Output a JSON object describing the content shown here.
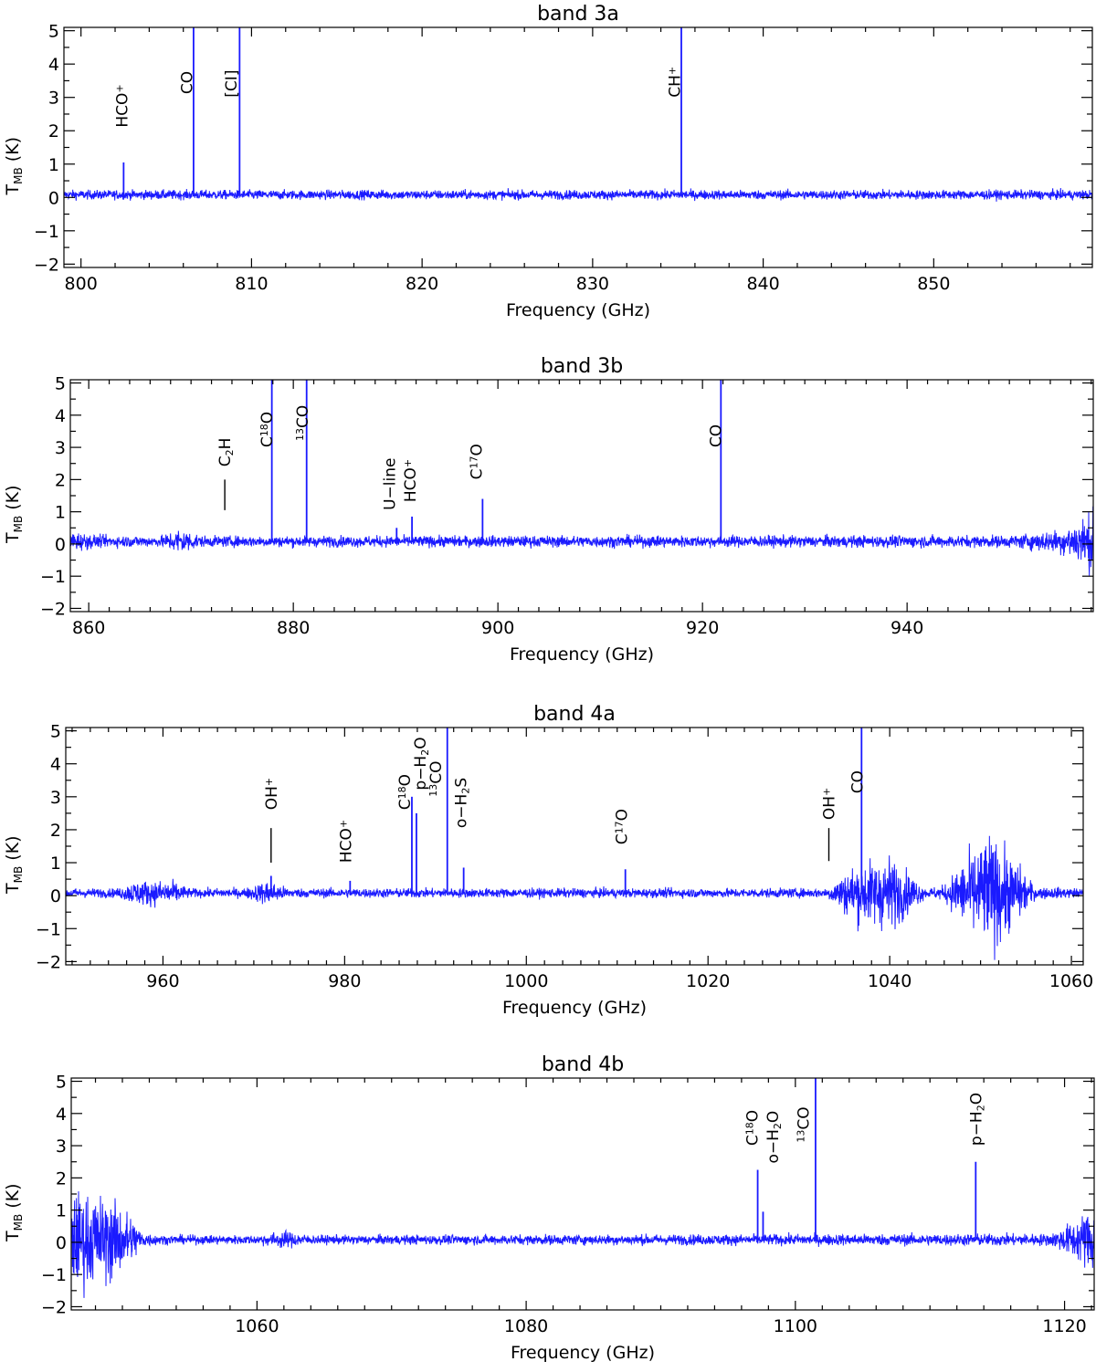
{
  "chart_data": [
    {
      "type": "line",
      "title": "band 3a",
      "xlabel": "Frequency (GHz)",
      "ylabel": "T_MB (K)",
      "ylabel_main": "T",
      "ylabel_sub": "MB",
      "ylabel_tail": " (K)",
      "xlim": [
        799,
        859.3
      ],
      "ylim": [
        -2.1,
        5.1
      ],
      "xticks": [
        800,
        810,
        820,
        830,
        840,
        850
      ],
      "yticks": [
        -2,
        -1,
        0,
        1,
        2,
        3,
        4,
        5
      ],
      "color": "#1a1aff",
      "noise": [
        [
          799,
          0.15
        ],
        [
          859.3,
          0.15
        ]
      ],
      "peaks": [
        {
          "x": 802.5,
          "y": 1.05
        },
        {
          "x": 806.6,
          "y": 5.1
        },
        {
          "x": 809.3,
          "y": 5.1
        },
        {
          "x": 835.2,
          "y": 5.1
        }
      ],
      "labels": [
        {
          "x": 802.4,
          "y": 2.1,
          "parts": [
            [
              "HCO",
              ""
            ],
            [
              "+",
              "sup"
            ]
          ]
        },
        {
          "x": 806.2,
          "y": 3.1,
          "parts": [
            [
              "CO",
              ""
            ]
          ]
        },
        {
          "x": 808.8,
          "y": 3.0,
          "parts": [
            [
              "[CI]",
              ""
            ]
          ]
        },
        {
          "x": 834.8,
          "y": 3.0,
          "parts": [
            [
              "CH",
              ""
            ],
            [
              "+",
              "sup"
            ]
          ]
        }
      ],
      "markers": []
    },
    {
      "type": "line",
      "title": "band 3b",
      "xlabel": "Frequency (GHz)",
      "ylabel": "T_MB (K)",
      "ylabel_main": "T",
      "ylabel_sub": "MB",
      "ylabel_tail": " (K)",
      "xlim": [
        858.2,
        958.2
      ],
      "ylim": [
        -2.1,
        5.1
      ],
      "xticks": [
        860,
        880,
        900,
        920,
        940
      ],
      "yticks": [
        -2,
        -1,
        0,
        1,
        2,
        3,
        4,
        5
      ],
      "color": "#1a1aff",
      "noise": [
        [
          858.2,
          0.35
        ],
        [
          861,
          0.2
        ],
        [
          867,
          0.18
        ],
        [
          869,
          0.45
        ],
        [
          871,
          0.18
        ],
        [
          950,
          0.2
        ],
        [
          955,
          0.4
        ],
        [
          958.2,
          1.0
        ]
      ],
      "peaks": [
        {
          "x": 877.9,
          "y": 5.1
        },
        {
          "x": 881.3,
          "y": 5.1
        },
        {
          "x": 890.1,
          "y": 0.5
        },
        {
          "x": 891.6,
          "y": 0.85
        },
        {
          "x": 898.5,
          "y": 1.4
        },
        {
          "x": 921.8,
          "y": 5.1
        }
      ],
      "labels": [
        {
          "x": 873.3,
          "y": 2.4,
          "parts": [
            [
              "C",
              ""
            ],
            [
              "2",
              "sub"
            ],
            [
              "H",
              ""
            ]
          ]
        },
        {
          "x": 877.4,
          "y": 3.0,
          "parts": [
            [
              "C",
              ""
            ],
            [
              "18",
              "sup"
            ],
            [
              "O",
              ""
            ]
          ]
        },
        {
          "x": 880.9,
          "y": 3.2,
          "parts": [
            [
              "13",
              "sup"
            ],
            [
              "CO",
              ""
            ]
          ]
        },
        {
          "x": 889.4,
          "y": 1.05,
          "parts": [
            [
              "U−line",
              ""
            ]
          ]
        },
        {
          "x": 891.4,
          "y": 1.3,
          "parts": [
            [
              "HCO",
              ""
            ],
            [
              "+",
              "sup"
            ]
          ]
        },
        {
          "x": 897.9,
          "y": 2.0,
          "parts": [
            [
              "C",
              ""
            ],
            [
              "17",
              "sup"
            ],
            [
              "O",
              ""
            ]
          ]
        },
        {
          "x": 921.3,
          "y": 3.0,
          "parts": [
            [
              "CO",
              ""
            ]
          ]
        }
      ],
      "markers": [
        {
          "x": 873.3,
          "y1": 1.05,
          "y2": 2.0
        }
      ]
    },
    {
      "type": "line",
      "title": "band 4a",
      "xlabel": "Frequency (GHz)",
      "ylabel": "T_MB (K)",
      "ylabel_main": "T",
      "ylabel_sub": "MB",
      "ylabel_tail": " (K)",
      "xlim": [
        949.3,
        1061.3
      ],
      "ylim": [
        -2.1,
        5.1
      ],
      "xticks": [
        960,
        980,
        1000,
        1020,
        1040,
        1060
      ],
      "yticks": [
        -2,
        -1,
        0,
        1,
        2,
        3,
        4,
        5
      ],
      "color": "#1a1aff",
      "noise": [
        [
          949.3,
          0.15
        ],
        [
          955,
          0.15
        ],
        [
          957,
          0.4
        ],
        [
          961,
          0.4
        ],
        [
          963,
          0.15
        ],
        [
          969,
          0.15
        ],
        [
          971.5,
          0.4
        ],
        [
          974,
          0.15
        ],
        [
          1033,
          0.15
        ],
        [
          1036,
          0.9
        ],
        [
          1040,
          1.2
        ],
        [
          1044,
          0.15
        ],
        [
          1046,
          0.25
        ],
        [
          1048,
          1.0
        ],
        [
          1051,
          1.9
        ],
        [
          1054,
          1.0
        ],
        [
          1056,
          0.2
        ],
        [
          1061.3,
          0.15
        ]
      ],
      "peaks": [
        {
          "x": 971.9,
          "y": 0.6
        },
        {
          "x": 980.6,
          "y": 0.45
        },
        {
          "x": 987.4,
          "y": 3.0
        },
        {
          "x": 987.9,
          "y": 2.5
        },
        {
          "x": 991.3,
          "y": 5.1
        },
        {
          "x": 993.1,
          "y": 0.85
        },
        {
          "x": 1010.9,
          "y": 0.8
        },
        {
          "x": 1036.9,
          "y": 5.1
        }
      ],
      "labels": [
        {
          "x": 971.9,
          "y": 2.6,
          "parts": [
            [
              "OH",
              ""
            ],
            [
              "+",
              "sup"
            ]
          ]
        },
        {
          "x": 980.1,
          "y": 1.0,
          "parts": [
            [
              "HCO",
              ""
            ],
            [
              "+",
              "sup"
            ]
          ]
        },
        {
          "x": 986.6,
          "y": 2.6,
          "parts": [
            [
              "C",
              ""
            ],
            [
              "18",
              "sup"
            ],
            [
              "O",
              ""
            ]
          ]
        },
        {
          "x": 988.3,
          "y": 3.2,
          "parts": [
            [
              "p−H",
              ""
            ],
            [
              "2",
              "sub"
            ],
            [
              "O",
              ""
            ]
          ]
        },
        {
          "x": 990.0,
          "y": 3.0,
          "parts": [
            [
              "13",
              "sup"
            ],
            [
              "CO",
              ""
            ]
          ]
        },
        {
          "x": 992.8,
          "y": 2.05,
          "parts": [
            [
              "o−H",
              ""
            ],
            [
              "2",
              "sub"
            ],
            [
              "S",
              ""
            ]
          ]
        },
        {
          "x": 1010.5,
          "y": 1.55,
          "parts": [
            [
              "C",
              ""
            ],
            [
              "17",
              "sup"
            ],
            [
              "O",
              ""
            ]
          ]
        },
        {
          "x": 1033.3,
          "y": 2.3,
          "parts": [
            [
              "OH",
              ""
            ],
            [
              "+",
              "sup"
            ]
          ]
        },
        {
          "x": 1036.4,
          "y": 3.1,
          "parts": [
            [
              "CO",
              ""
            ]
          ]
        }
      ],
      "markers": [
        {
          "x": 971.9,
          "y1": 1.0,
          "y2": 2.05
        },
        {
          "x": 1033.3,
          "y1": 1.05,
          "y2": 2.05
        }
      ]
    },
    {
      "type": "line",
      "title": "band 4b",
      "xlabel": "Frequency (GHz)",
      "ylabel": "T_MB (K)",
      "ylabel_main": "T",
      "ylabel_sub": "MB",
      "ylabel_tail": " (K)",
      "xlim": [
        1046.2,
        1122.2
      ],
      "ylim": [
        -2.1,
        5.1
      ],
      "xticks": [
        1060,
        1080,
        1100,
        1120
      ],
      "yticks": [
        -2,
        -1,
        0,
        1,
        2,
        3,
        4,
        5
      ],
      "color": "#1a1aff",
      "noise": [
        [
          1046.2,
          1.6
        ],
        [
          1049,
          1.4
        ],
        [
          1050.5,
          0.9
        ],
        [
          1051.5,
          0.25
        ],
        [
          1053,
          0.15
        ],
        [
          1060,
          0.15
        ],
        [
          1062,
          0.3
        ],
        [
          1064,
          0.15
        ],
        [
          1119,
          0.2
        ],
        [
          1121,
          0.7
        ],
        [
          1122.2,
          1.2
        ]
      ],
      "peaks": [
        {
          "x": 1097.2,
          "y": 2.25
        },
        {
          "x": 1097.6,
          "y": 0.95
        },
        {
          "x": 1101.5,
          "y": 5.1
        },
        {
          "x": 1113.4,
          "y": 2.5
        }
      ],
      "labels": [
        {
          "x": 1096.8,
          "y": 3.0,
          "parts": [
            [
              "C",
              ""
            ],
            [
              "18",
              "sup"
            ],
            [
              "O",
              ""
            ]
          ]
        },
        {
          "x": 1098.3,
          "y": 2.45,
          "parts": [
            [
              "o−H",
              ""
            ],
            [
              "2",
              "sub"
            ],
            [
              "O",
              ""
            ]
          ]
        },
        {
          "x": 1100.6,
          "y": 3.1,
          "parts": [
            [
              "13",
              "sup"
            ],
            [
              "CO",
              ""
            ]
          ]
        },
        {
          "x": 1113.4,
          "y": 3.0,
          "parts": [
            [
              "p−H",
              ""
            ],
            [
              "2",
              "sub"
            ],
            [
              "O",
              ""
            ]
          ]
        }
      ],
      "markers": []
    }
  ]
}
